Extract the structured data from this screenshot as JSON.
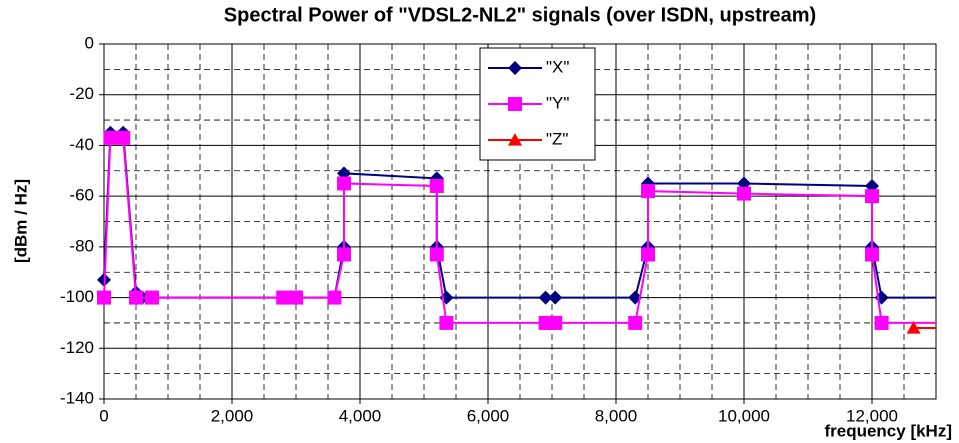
{
  "chart_data": {
    "type": "line",
    "title": "Spectral Power of \"VDSL2-NL2\" signals (over ISDN, upstream)",
    "x_label": "frequency [kHz]",
    "y_label": "[dBm / Hz]",
    "xlim": [
      0,
      13000
    ],
    "ylim": [
      -140,
      0
    ],
    "xticks": [
      0,
      {
        "value": 2000,
        "label": "2,000"
      },
      {
        "value": 4000,
        "label": "4,000"
      },
      {
        "value": 6000,
        "label": "6,000"
      },
      {
        "value": 8000,
        "label": "8,000"
      },
      {
        "value": 10000,
        "label": "10,000"
      },
      {
        "value": 12000,
        "label": "12,000"
      }
    ],
    "yticks": [
      0,
      -20,
      -40,
      -60,
      -80,
      -100,
      -120,
      -140
    ],
    "grid": true,
    "legend": "top-center",
    "series": [
      {
        "name": "\"X\"",
        "color": "#000080",
        "marker": "diamond",
        "x": [
          0,
          100,
          300,
          500,
          600,
          750,
          2800,
          3000,
          3600,
          3750,
          3750,
          5200,
          5200,
          5350,
          6900,
          7050,
          8300,
          8500,
          8500,
          10000,
          12000,
          12000,
          12150,
          13000
        ],
        "values": [
          -93,
          -35,
          -35,
          -98,
          -100,
          -100,
          -100,
          -100,
          -100,
          -80,
          -51,
          -53,
          -80,
          -100,
          -100,
          -100,
          -100,
          -80,
          -55,
          -55,
          -56,
          -80,
          -100,
          -100
        ]
      },
      {
        "name": "\"Y\"",
        "color": "#ff00ff",
        "marker": "square",
        "x": [
          0,
          100,
          300,
          500,
          750,
          2800,
          3000,
          3600,
          3750,
          3750,
          5200,
          5200,
          5350,
          6900,
          7050,
          8300,
          8500,
          8500,
          10000,
          12000,
          12000,
          12150,
          13000
        ],
        "values": [
          -100,
          -37,
          -37,
          -100,
          -100,
          -100,
          -100,
          -100,
          -83,
          -55,
          -56,
          -83,
          -110,
          -110,
          -110,
          -110,
          -83,
          -58,
          -59,
          -60,
          -83,
          -110,
          -110
        ]
      },
      {
        "name": "\"Z\"",
        "color": "#ff0000",
        "marker": "triangle",
        "x": [
          12650,
          13000
        ],
        "values": [
          -112,
          -112
        ]
      }
    ]
  }
}
